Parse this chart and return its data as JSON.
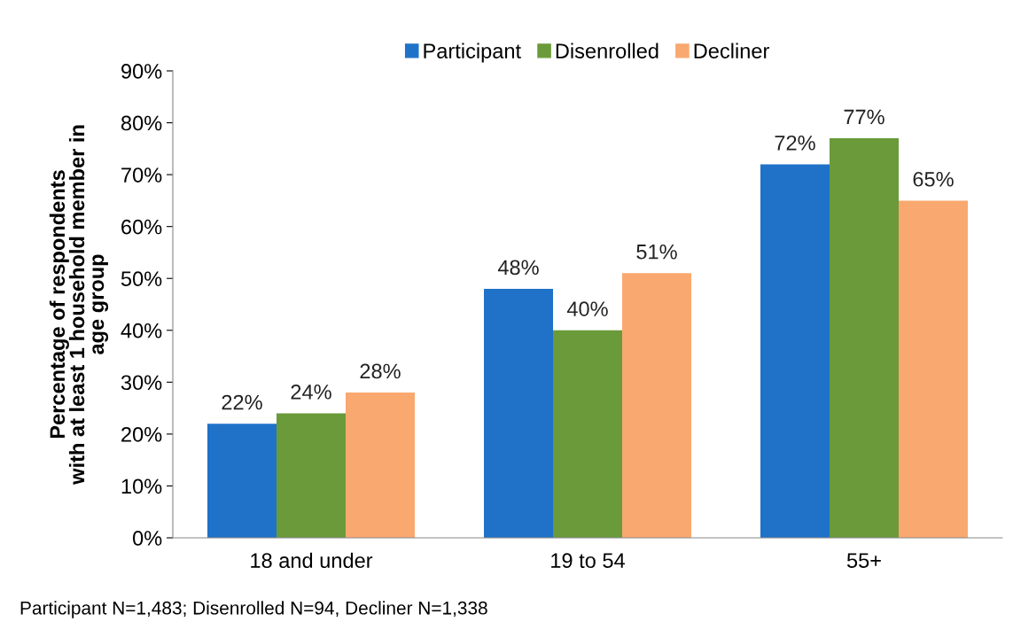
{
  "chart_data": {
    "type": "bar",
    "ylabel": "Percentage of respondents\nwith at least 1 household member in\nage group",
    "categories": [
      "18 and under",
      "19 to 54",
      "55+"
    ],
    "series": [
      {
        "name": "Participant",
        "color": "#1f72c8",
        "values": [
          22,
          48,
          72
        ],
        "value_labels": [
          "22%",
          "48%",
          "72%"
        ]
      },
      {
        "name": "Disenrolled",
        "color": "#6a9a3a",
        "values": [
          24,
          40,
          77
        ],
        "value_labels": [
          "24%",
          "40%",
          "77%"
        ]
      },
      {
        "name": "Decliner",
        "color": "#f9a86f",
        "values": [
          28,
          51,
          65
        ],
        "value_labels": [
          "28%",
          "51%",
          "65%"
        ]
      }
    ],
    "ylim": [
      0,
      90
    ],
    "yticks": [
      {
        "value": 0,
        "label": "0%"
      },
      {
        "value": 10,
        "label": "10%"
      },
      {
        "value": 20,
        "label": "20%"
      },
      {
        "value": 30,
        "label": "30%"
      },
      {
        "value": 40,
        "label": "40%"
      },
      {
        "value": 50,
        "label": "50%"
      },
      {
        "value": 60,
        "label": "60%"
      },
      {
        "value": 70,
        "label": "70%"
      },
      {
        "value": 80,
        "label": "80%"
      },
      {
        "value": 90,
        "label": "90%"
      }
    ],
    "grid": false,
    "legend": "top",
    "annotations": [
      "Participant N=1,483; Disenrolled N=94, Decliner N=1,338"
    ]
  }
}
